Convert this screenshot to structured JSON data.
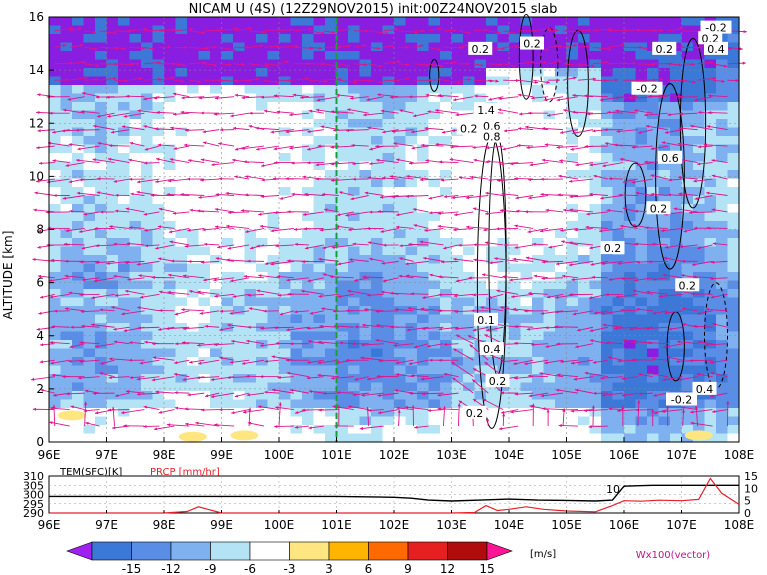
{
  "chart_data": [
    {
      "type": "heatmap",
      "title": "NICAM U (4S) (12Z29NOV2015) init:00Z24NOV2015 slab",
      "xlabel": "",
      "ylabel": "ALTITUDE [km]",
      "x_ticks": [
        "96E",
        "97E",
        "98E",
        "99E",
        "100E",
        "101E",
        "102E",
        "103E",
        "104E",
        "105E",
        "106E",
        "107E",
        "108E"
      ],
      "y_ticks": [
        "0",
        "2",
        "4",
        "6",
        "8",
        "10",
        "12",
        "14",
        "16"
      ],
      "xlim": [
        96,
        108
      ],
      "ylim": [
        0,
        16
      ],
      "grid": true,
      "marker_line_lon": 101,
      "contour_labels": [
        {
          "text": "-0.2",
          "lon": 107.6,
          "alt": 15.6
        },
        {
          "text": "0.2",
          "lon": 104.4,
          "alt": 15.0
        },
        {
          "text": "0.2",
          "lon": 107.5,
          "alt": 15.2
        },
        {
          "text": "0.2",
          "lon": 103.5,
          "alt": 14.8
        },
        {
          "text": "0.2",
          "lon": 106.7,
          "alt": 14.8
        },
        {
          "text": "0.4",
          "lon": 107.6,
          "alt": 14.8
        },
        {
          "text": "-0.2",
          "lon": 106.4,
          "alt": 13.3
        },
        {
          "text": "1.4",
          "lon": 103.6,
          "alt": 12.5
        },
        {
          "text": "0.6",
          "lon": 103.7,
          "alt": 11.9
        },
        {
          "text": "0.8",
          "lon": 103.7,
          "alt": 11.5
        },
        {
          "text": "0.2",
          "lon": 103.3,
          "alt": 11.8
        },
        {
          "text": "0.6",
          "lon": 106.8,
          "alt": 10.7
        },
        {
          "text": "0.2",
          "lon": 106.6,
          "alt": 8.8
        },
        {
          "text": "0.2",
          "lon": 105.8,
          "alt": 7.3
        },
        {
          "text": "0.2",
          "lon": 107.1,
          "alt": 5.9
        },
        {
          "text": "0.1",
          "lon": 103.6,
          "alt": 4.6
        },
        {
          "text": "0.4",
          "lon": 103.7,
          "alt": 3.5
        },
        {
          "text": "0.2",
          "lon": 103.8,
          "alt": 2.3
        },
        {
          "text": "0.2",
          "lon": 103.4,
          "alt": 1.1
        },
        {
          "text": "-0.2",
          "lon": 107.0,
          "alt": 1.6
        },
        {
          "text": "0.4",
          "lon": 107.4,
          "alt": 2.0
        }
      ]
    },
    {
      "type": "line",
      "title": "",
      "legend_labels": [
        "TEM(SFC)[K]",
        "PRCP [mm/hr]"
      ],
      "y_ticks_left": [
        "310",
        "305",
        "300",
        "295",
        "290"
      ],
      "y_ticks_right": [
        "15",
        "10",
        "5",
        "0"
      ],
      "x_ticks": [
        "96E",
        "97E",
        "98E",
        "99E",
        "100E",
        "101E",
        "102E",
        "103E",
        "104E",
        "105E",
        "106E",
        "107E",
        "108E"
      ],
      "xlim": [
        96,
        108
      ],
      "ylim_left": [
        290,
        310
      ],
      "ylim_right": [
        0,
        15
      ],
      "series": [
        {
          "name": "TEM(SFC)[K]",
          "color": "#000000",
          "axis": "left",
          "x": [
            96,
            97,
            98,
            99,
            100,
            101,
            102,
            102.3,
            102.6,
            103,
            103.5,
            104,
            104.5,
            105,
            105.5,
            105.8,
            106,
            106.5,
            107,
            108
          ],
          "values": [
            299,
            299,
            299,
            299,
            299,
            299,
            298.5,
            298,
            297,
            296.5,
            297,
            297.5,
            297,
            296.8,
            296.5,
            297,
            304.5,
            305,
            305,
            305
          ]
        },
        {
          "name": "PRCP [mm/hr]",
          "color": "#e8202a",
          "axis": "right",
          "x": [
            96,
            97,
            98,
            98.4,
            98.6,
            99,
            100,
            101,
            102,
            103,
            103.4,
            103.6,
            103.8,
            104,
            104.3,
            104.6,
            105,
            105.5,
            105.8,
            106,
            106.3,
            106.6,
            107,
            107.3,
            107.5,
            107.7,
            108
          ],
          "values": [
            0,
            0,
            0,
            0.6,
            2.5,
            0,
            0,
            0,
            0,
            0,
            0.2,
            3,
            1,
            1.5,
            2.5,
            1.5,
            0.8,
            0.5,
            3,
            5,
            4.8,
            5.2,
            5,
            5.5,
            14,
            8,
            3.5
          ]
        }
      ],
      "annotation": "10"
    }
  ],
  "colorbar": {
    "unit": "[m/s]",
    "labels": [
      "-15",
      "-12",
      "-9",
      "-6",
      "-3",
      "3",
      "6",
      "9",
      "12",
      "15"
    ],
    "colors": [
      "#a020f0",
      "#3c78d8",
      "#5a8ee6",
      "#7fb0f0",
      "#b3e3f5",
      "#ffffff",
      "#ffe680",
      "#ffb400",
      "#ff6a00",
      "#e62020",
      "#b00c0c",
      "#ff1493"
    ]
  },
  "vector_legend": "Wx100(vector)"
}
